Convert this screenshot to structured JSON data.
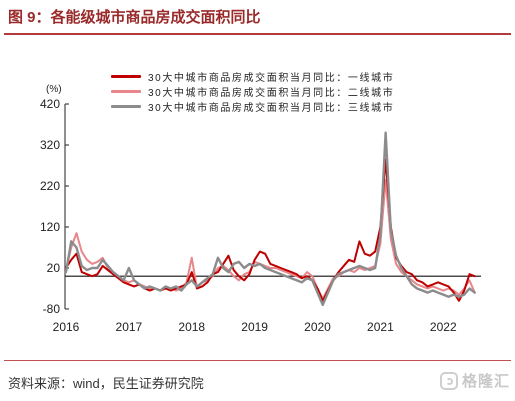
{
  "title": "图 9：各能级城市商品房成交面积同比",
  "source": "资料来源：wind，民生证券研究院",
  "watermark": "格隆汇",
  "chart_data": {
    "type": "line",
    "ylabel": "(%)",
    "ylim": [
      -80,
      420
    ],
    "yticks": [
      420,
      320,
      220,
      120,
      20,
      -80
    ],
    "xticks": [
      "2016",
      "2017",
      "2018",
      "2019",
      "2020",
      "2021",
      "2022"
    ],
    "reference_line_y": 0,
    "grid": false,
    "legend_position": "top-right",
    "x": [
      "2016-01",
      "2016-02",
      "2016-03",
      "2016-04",
      "2016-05",
      "2016-06",
      "2016-07",
      "2016-08",
      "2016-09",
      "2016-10",
      "2016-11",
      "2016-12",
      "2017-01",
      "2017-02",
      "2017-03",
      "2017-04",
      "2017-05",
      "2017-06",
      "2017-07",
      "2017-08",
      "2017-09",
      "2017-10",
      "2017-11",
      "2017-12",
      "2018-01",
      "2018-02",
      "2018-03",
      "2018-04",
      "2018-05",
      "2018-06",
      "2018-07",
      "2018-08",
      "2018-09",
      "2018-10",
      "2018-11",
      "2018-12",
      "2019-01",
      "2019-02",
      "2019-03",
      "2019-04",
      "2019-05",
      "2019-06",
      "2019-07",
      "2019-08",
      "2019-09",
      "2019-10",
      "2019-11",
      "2019-12",
      "2020-01",
      "2020-02",
      "2020-03",
      "2020-04",
      "2020-05",
      "2020-06",
      "2020-07",
      "2020-08",
      "2020-09",
      "2020-10",
      "2020-11",
      "2020-12",
      "2021-01",
      "2021-02",
      "2021-03",
      "2021-04",
      "2021-05",
      "2021-06",
      "2021-07",
      "2021-08",
      "2021-09",
      "2021-10",
      "2021-11",
      "2021-12",
      "2022-01",
      "2022-02",
      "2022-03",
      "2022-04",
      "2022-05",
      "2022-06",
      "2022-07"
    ],
    "series": [
      {
        "name": "30大中城市商品房成交面积当月同比：一线城市",
        "color": "#c00000",
        "values": [
          20,
          40,
          55,
          10,
          5,
          0,
          5,
          25,
          15,
          5,
          -5,
          -15,
          -20,
          -25,
          -20,
          -30,
          -35,
          -30,
          -35,
          -30,
          -35,
          -30,
          -25,
          -20,
          10,
          -30,
          -25,
          -15,
          5,
          10,
          30,
          50,
          15,
          0,
          -10,
          5,
          40,
          60,
          55,
          30,
          25,
          20,
          15,
          10,
          5,
          -5,
          0,
          -10,
          -30,
          -60,
          -35,
          -10,
          10,
          25,
          40,
          35,
          85,
          55,
          50,
          60,
          120,
          285,
          120,
          45,
          25,
          10,
          5,
          -10,
          -15,
          -25,
          -20,
          -15,
          -20,
          -25,
          -40,
          -60,
          -35,
          5,
          0
        ]
      },
      {
        "name": "30大中城市商品房成交面积当月同比：二线城市",
        "color": "#e8878b",
        "values": [
          15,
          70,
          105,
          60,
          40,
          30,
          35,
          45,
          20,
          10,
          0,
          -10,
          -15,
          -10,
          -20,
          -25,
          -30,
          -30,
          -35,
          -25,
          -30,
          -35,
          -30,
          -15,
          45,
          -30,
          -15,
          -10,
          0,
          20,
          25,
          15,
          0,
          -10,
          5,
          10,
          35,
          30,
          25,
          20,
          20,
          15,
          10,
          5,
          0,
          -5,
          10,
          0,
          -30,
          -55,
          -30,
          -5,
          0,
          10,
          15,
          10,
          20,
          15,
          20,
          25,
          80,
          235,
          90,
          30,
          10,
          0,
          -10,
          -20,
          -25,
          -30,
          -25,
          -30,
          -35,
          -30,
          -35,
          -45,
          -30,
          -10,
          -40
        ]
      },
      {
        "name": "30大中城市商品房成交面积当月同比：三线城市",
        "color": "#8c8c8c",
        "values": [
          10,
          85,
          70,
          25,
          15,
          20,
          20,
          40,
          25,
          10,
          0,
          -10,
          20,
          -10,
          -20,
          -30,
          -25,
          -30,
          -35,
          -25,
          -30,
          -25,
          -35,
          -20,
          -10,
          -25,
          -15,
          -5,
          5,
          45,
          20,
          10,
          30,
          35,
          20,
          30,
          25,
          30,
          20,
          15,
          10,
          5,
          0,
          -5,
          -10,
          -15,
          -5,
          -10,
          -40,
          -70,
          -40,
          -10,
          5,
          10,
          15,
          20,
          25,
          20,
          15,
          20,
          100,
          350,
          110,
          50,
          20,
          0,
          -20,
          -30,
          -35,
          -40,
          -35,
          -40,
          -45,
          -50,
          -45,
          -50,
          -45,
          -30,
          -40
        ]
      }
    ]
  }
}
